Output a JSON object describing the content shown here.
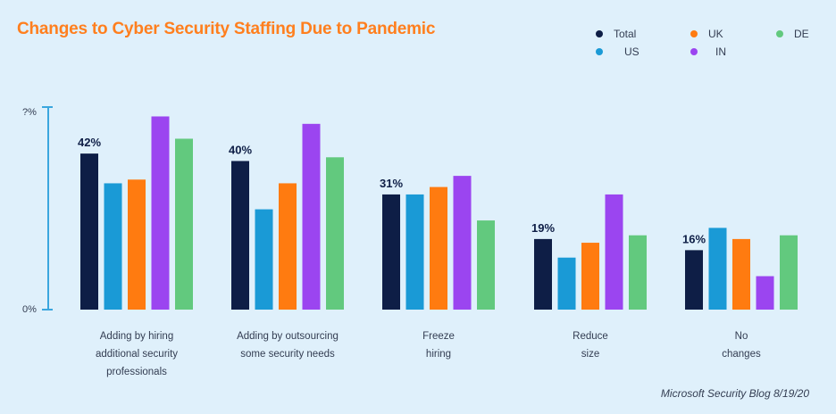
{
  "title": "Changes to Cyber Security Staffing Due to Pandemic",
  "source": "Microsoft Security Blog 8/19/20",
  "colors": {
    "Total": "#0e1e46",
    "US": "#1a9ad6",
    "UK": "#ff7b10",
    "IN": "#9b45f0",
    "DE": "#62c97e",
    "axis": "#3aa6de",
    "text": "#333d52"
  },
  "chart_data": {
    "type": "bar",
    "title": "Changes to Cyber Security Staffing Due to Pandemic",
    "xlabel": "",
    "ylabel": "",
    "ylim": [
      0,
      55
    ],
    "yticks": [
      "0%",
      "?%"
    ],
    "legend_position": "top-right",
    "categories": [
      [
        "Adding by hiring",
        "additional security",
        "professionals"
      ],
      [
        "Adding by outsourcing",
        "some security needs"
      ],
      [
        "Freeze",
        "hiring"
      ],
      [
        "Reduce",
        "size"
      ],
      [
        "No",
        "changes"
      ]
    ],
    "series": [
      {
        "name": "Total",
        "values": [
          42,
          40,
          31,
          19,
          16
        ]
      },
      {
        "name": "US",
        "values": [
          34,
          27,
          31,
          14,
          22
        ]
      },
      {
        "name": "UK",
        "values": [
          35,
          34,
          33,
          18,
          19
        ]
      },
      {
        "name": "IN",
        "values": [
          52,
          50,
          36,
          31,
          9
        ]
      },
      {
        "name": "DE",
        "values": [
          46,
          41,
          24,
          20,
          20
        ]
      }
    ],
    "data_labels": [
      "42%",
      "40%",
      "31%",
      "19%",
      "16%"
    ]
  }
}
